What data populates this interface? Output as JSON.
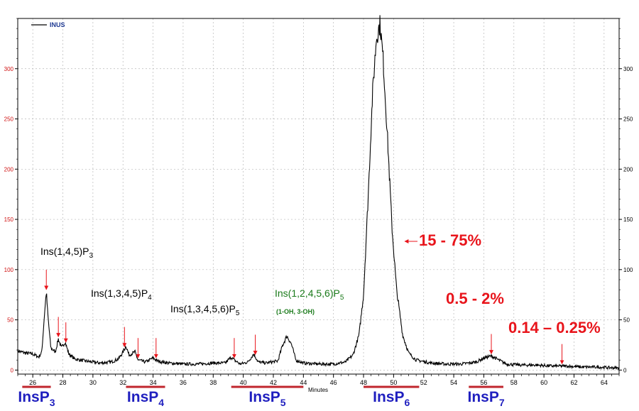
{
  "chart_data": {
    "type": "line",
    "title": "",
    "xlabel": "Minutes",
    "ylabel": "",
    "xlim": [
      25,
      65
    ],
    "ylim": [
      -4,
      350
    ],
    "x_ticks": [
      26,
      28,
      30,
      32,
      34,
      36,
      38,
      40,
      42,
      44,
      46,
      48,
      50,
      52,
      54,
      56,
      58,
      60,
      62,
      64
    ],
    "y_ticks": [
      0,
      50,
      100,
      150,
      200,
      250,
      300
    ],
    "grid": true,
    "legend": {
      "position": "top-left",
      "entries": [
        "INUS"
      ]
    },
    "series": [
      {
        "name": "INUS",
        "color": "#000000",
        "points": [
          [
            25.0,
            19
          ],
          [
            25.5,
            17
          ],
          [
            26.0,
            16
          ],
          [
            26.4,
            13
          ],
          [
            26.6,
            18
          ],
          [
            26.8,
            60
          ],
          [
            26.9,
            78
          ],
          [
            27.0,
            55
          ],
          [
            27.2,
            22
          ],
          [
            27.5,
            18
          ],
          [
            27.7,
            31
          ],
          [
            27.9,
            22
          ],
          [
            28.15,
            28
          ],
          [
            28.4,
            16
          ],
          [
            28.8,
            11
          ],
          [
            29.5,
            9
          ],
          [
            30.5,
            7
          ],
          [
            31.2,
            8
          ],
          [
            31.7,
            11
          ],
          [
            32.0,
            18
          ],
          [
            32.2,
            24
          ],
          [
            32.4,
            15
          ],
          [
            32.8,
            18
          ],
          [
            33.0,
            10
          ],
          [
            33.5,
            8
          ],
          [
            34.0,
            12
          ],
          [
            34.3,
            9
          ],
          [
            35.0,
            7
          ],
          [
            36.0,
            6
          ],
          [
            37.0,
            6
          ],
          [
            38.0,
            7
          ],
          [
            38.8,
            7
          ],
          [
            39.2,
            13
          ],
          [
            39.4,
            10
          ],
          [
            39.8,
            6
          ],
          [
            40.3,
            8
          ],
          [
            40.7,
            16
          ],
          [
            41.0,
            8
          ],
          [
            41.5,
            7
          ],
          [
            42.3,
            9
          ],
          [
            42.6,
            24
          ],
          [
            42.9,
            34
          ],
          [
            43.2,
            26
          ],
          [
            43.5,
            10
          ],
          [
            44.0,
            7
          ],
          [
            45.0,
            6
          ],
          [
            46.0,
            6
          ],
          [
            46.8,
            8
          ],
          [
            47.3,
            15
          ],
          [
            47.7,
            35
          ],
          [
            48.0,
            75
          ],
          [
            48.3,
            170
          ],
          [
            48.6,
            275
          ],
          [
            48.85,
            330
          ],
          [
            49.1,
            345
          ],
          [
            49.3,
            310
          ],
          [
            49.6,
            230
          ],
          [
            49.9,
            140
          ],
          [
            50.2,
            80
          ],
          [
            50.6,
            35
          ],
          [
            51.0,
            17
          ],
          [
            51.5,
            10
          ],
          [
            52.5,
            7
          ],
          [
            53.5,
            6
          ],
          [
            54.5,
            6
          ],
          [
            55.5,
            8
          ],
          [
            56.0,
            12
          ],
          [
            56.5,
            14
          ],
          [
            57.0,
            10
          ],
          [
            57.5,
            6
          ],
          [
            58.5,
            5
          ],
          [
            59.5,
            5
          ],
          [
            60.5,
            4
          ],
          [
            61.5,
            4
          ],
          [
            62.5,
            3
          ],
          [
            63.5,
            3
          ],
          [
            65.0,
            2
          ]
        ]
      }
    ],
    "annotations": [
      {
        "id": "ins145p3",
        "label": "Ins(1,4,5)P",
        "sub": "3",
        "color": "#000000"
      },
      {
        "id": "ins1345p4",
        "label": "Ins(1,3,4,5)P",
        "sub": "4",
        "color": "#000000"
      },
      {
        "id": "ins13456p5",
        "label": "Ins(1,3,4,5,6)P",
        "sub": "5",
        "color": "#000000"
      },
      {
        "id": "ins12456p5",
        "label": "Ins(1,2,4,5,6)P",
        "sub": "5",
        "color": "#1a7a1a"
      },
      {
        "id": "oh_note",
        "label": "(1-OH, 3-OH)",
        "color": "#1a7a1a"
      },
      {
        "id": "pct_insp6",
        "label": "15 - 75%",
        "color": "#e8141b"
      },
      {
        "id": "pct_insp7",
        "label": "0.5 - 2%",
        "color": "#e8141b"
      },
      {
        "id": "pct_insp8",
        "label": "0.14 – 0.25%",
        "color": "#e8141b"
      }
    ],
    "arrows_x": [
      26.9,
      27.7,
      28.2,
      32.1,
      33.0,
      34.2,
      39.4,
      40.8,
      56.5,
      61.2
    ],
    "range_labels": [
      {
        "label": "InsP",
        "sub": "3",
        "x_from": 25.3,
        "x_to": 27.2
      },
      {
        "label": "InsP",
        "sub": "4",
        "x_from": 32.2,
        "x_to": 34.8
      },
      {
        "label": "InsP",
        "sub": "5",
        "x_from": 39.2,
        "x_to": 44.0
      },
      {
        "label": "InsP",
        "sub": "6",
        "x_from": 48.0,
        "x_to": 51.7
      },
      {
        "label": "InsP",
        "sub": "7",
        "x_from": 55.0,
        "x_to": 57.3
      }
    ]
  }
}
